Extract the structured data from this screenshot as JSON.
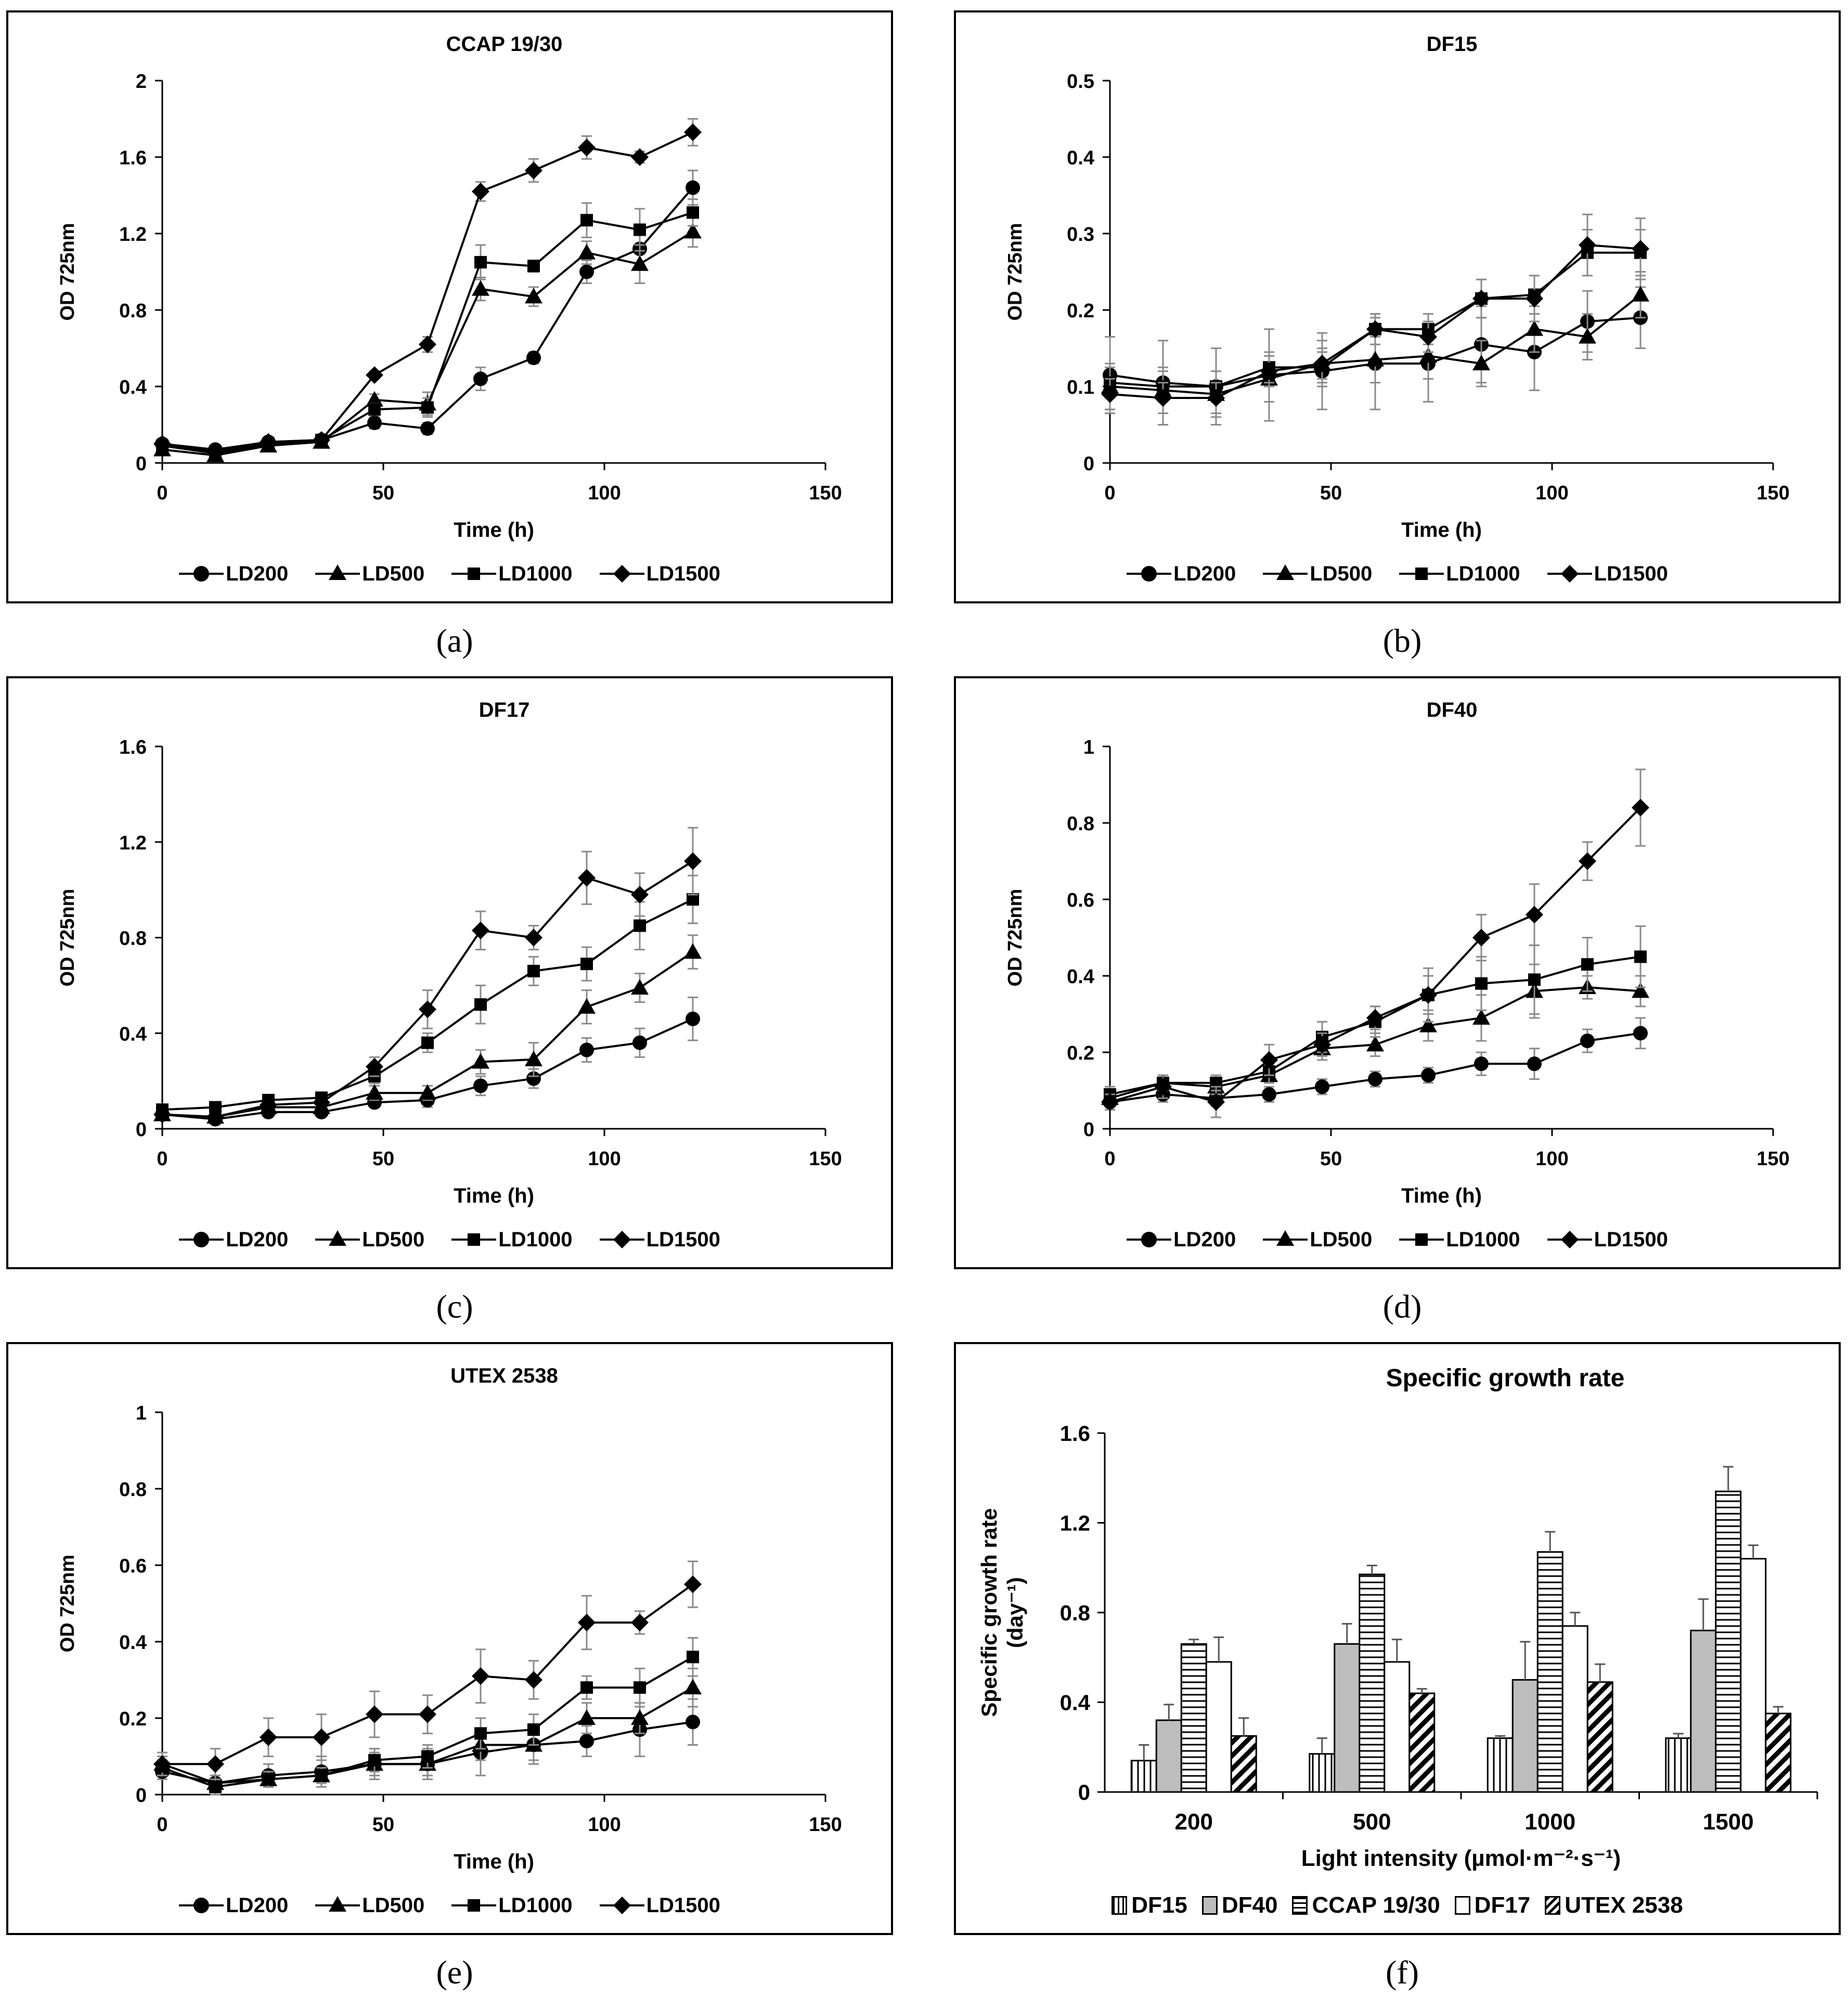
{
  "chart_data": [
    {
      "id": "a",
      "type": "line",
      "panel_label": "(a)",
      "title": "CCAP 19/30",
      "xlabel": "Time (h)",
      "ylabel": "OD 725nm",
      "xlim": [
        0,
        150
      ],
      "ylim": [
        0,
        2
      ],
      "xticks": [
        0,
        50,
        100,
        150
      ],
      "yticks": [
        0,
        0.4,
        0.8,
        1.2,
        1.6,
        2
      ],
      "ytick_labels": [
        "0",
        "0.4",
        "0.8",
        "1.2",
        "1.6",
        "2"
      ],
      "x": [
        0,
        12,
        24,
        36,
        48,
        60,
        72,
        84,
        96,
        108,
        120
      ],
      "series": [
        {
          "name": "LD200",
          "marker": "circle",
          "values": [
            0.1,
            0.07,
            0.11,
            0.12,
            0.21,
            0.18,
            0.44,
            0.55,
            1.0,
            1.12,
            1.44
          ],
          "errors": [
            0.02,
            0.01,
            0.01,
            0.01,
            0.03,
            0.03,
            0.06,
            0.03,
            0.06,
            0.08,
            0.09
          ]
        },
        {
          "name": "LD500",
          "marker": "triangle",
          "values": [
            0.07,
            0.04,
            0.09,
            0.11,
            0.33,
            0.31,
            0.91,
            0.87,
            1.1,
            1.04,
            1.21
          ],
          "errors": [
            0.01,
            0.01,
            0.01,
            0.01,
            0.03,
            0.06,
            0.06,
            0.05,
            0.06,
            0.1,
            0.08
          ]
        },
        {
          "name": "LD1000",
          "marker": "square",
          "values": [
            0.09,
            0.05,
            0.1,
            0.12,
            0.28,
            0.29,
            1.05,
            1.03,
            1.27,
            1.22,
            1.31
          ],
          "errors": [
            0.01,
            0.01,
            0.01,
            0.01,
            0.03,
            0.05,
            0.09,
            0.03,
            0.09,
            0.11,
            0.07
          ]
        },
        {
          "name": "LD1500",
          "marker": "diamond",
          "values": [
            0.1,
            0.06,
            0.11,
            0.12,
            0.46,
            0.62,
            1.42,
            1.53,
            1.65,
            1.6,
            1.73
          ],
          "errors": [
            0.01,
            0.01,
            0.01,
            0.01,
            0.02,
            0.04,
            0.05,
            0.06,
            0.06,
            0.03,
            0.07
          ]
        }
      ]
    },
    {
      "id": "b",
      "type": "line",
      "panel_label": "(b)",
      "title": "DF15",
      "xlabel": "Time (h)",
      "ylabel": "OD 725nm",
      "xlim": [
        0,
        150
      ],
      "ylim": [
        0,
        0.5
      ],
      "xticks": [
        0,
        50,
        100,
        150
      ],
      "yticks": [
        0,
        0.1,
        0.2,
        0.3,
        0.4,
        0.5
      ],
      "ytick_labels": [
        "0",
        "0.1",
        "0.2",
        "0.3",
        "0.4",
        "0.5"
      ],
      "x": [
        0,
        12,
        24,
        36,
        48,
        60,
        72,
        84,
        96,
        108,
        120
      ],
      "series": [
        {
          "name": "LD200",
          "marker": "circle",
          "values": [
            0.115,
            0.105,
            0.1,
            0.115,
            0.12,
            0.13,
            0.13,
            0.155,
            0.145,
            0.185,
            0.19
          ],
          "errors": [
            0.05,
            0.055,
            0.05,
            0.06,
            0.05,
            0.06,
            0.05,
            0.05,
            0.05,
            0.04,
            0.04
          ]
        },
        {
          "name": "LD500",
          "marker": "triangle",
          "values": [
            0.1,
            0.095,
            0.09,
            0.11,
            0.13,
            0.135,
            0.14,
            0.13,
            0.175,
            0.165,
            0.22
          ],
          "errors": [
            0.03,
            0.03,
            0.03,
            0.03,
            0.03,
            0.03,
            0.03,
            0.03,
            0.03,
            0.03,
            0.03
          ]
        },
        {
          "name": "LD1000",
          "marker": "square",
          "values": [
            0.105,
            0.1,
            0.1,
            0.125,
            0.125,
            0.175,
            0.175,
            0.215,
            0.22,
            0.275,
            0.275
          ],
          "errors": [
            0.02,
            0.02,
            0.02,
            0.02,
            0.02,
            0.02,
            0.02,
            0.025,
            0.025,
            0.03,
            0.03
          ]
        },
        {
          "name": "LD1500",
          "marker": "diamond",
          "values": [
            0.09,
            0.085,
            0.085,
            0.12,
            0.13,
            0.175,
            0.165,
            0.215,
            0.215,
            0.285,
            0.28
          ],
          "errors": [
            0.02,
            0.02,
            0.02,
            0.02,
            0.02,
            0.02,
            0.02,
            0.025,
            0.03,
            0.04,
            0.04
          ]
        }
      ]
    },
    {
      "id": "c",
      "type": "line",
      "panel_label": "(c)",
      "title": "DF17",
      "xlabel": "Time (h)",
      "ylabel": "OD 725nm",
      "xlim": [
        0,
        150
      ],
      "ylim": [
        0,
        1.6
      ],
      "xticks": [
        0,
        50,
        100,
        150
      ],
      "yticks": [
        0,
        0.4,
        0.8,
        1.2,
        1.6
      ],
      "ytick_labels": [
        "0",
        "0.4",
        "0.8",
        "1.2",
        "1.6"
      ],
      "x": [
        0,
        12,
        24,
        36,
        48,
        60,
        72,
        84,
        96,
        108,
        120
      ],
      "series": [
        {
          "name": "LD200",
          "marker": "circle",
          "values": [
            0.06,
            0.04,
            0.07,
            0.07,
            0.11,
            0.12,
            0.18,
            0.21,
            0.33,
            0.36,
            0.46
          ],
          "errors": [
            0.01,
            0.01,
            0.01,
            0.01,
            0.02,
            0.03,
            0.04,
            0.04,
            0.05,
            0.06,
            0.09
          ]
        },
        {
          "name": "LD500",
          "marker": "triangle",
          "values": [
            0.06,
            0.05,
            0.09,
            0.09,
            0.15,
            0.15,
            0.28,
            0.29,
            0.51,
            0.59,
            0.74
          ],
          "errors": [
            0.01,
            0.01,
            0.01,
            0.01,
            0.03,
            0.03,
            0.05,
            0.07,
            0.07,
            0.06,
            0.07
          ]
        },
        {
          "name": "LD1000",
          "marker": "square",
          "values": [
            0.08,
            0.09,
            0.12,
            0.13,
            0.22,
            0.36,
            0.52,
            0.66,
            0.69,
            0.85,
            0.96
          ],
          "errors": [
            0.01,
            0.01,
            0.01,
            0.01,
            0.03,
            0.04,
            0.08,
            0.06,
            0.07,
            0.1,
            0.1
          ]
        },
        {
          "name": "LD1500",
          "marker": "diamond",
          "values": [
            0.06,
            0.05,
            0.1,
            0.11,
            0.26,
            0.5,
            0.83,
            0.8,
            1.05,
            0.98,
            1.12
          ],
          "errors": [
            0.01,
            0.01,
            0.01,
            0.01,
            0.04,
            0.08,
            0.08,
            0.05,
            0.11,
            0.09,
            0.14
          ]
        }
      ]
    },
    {
      "id": "d",
      "type": "line",
      "panel_label": "(d)",
      "title": "DF40",
      "xlabel": "Time (h)",
      "ylabel": "OD 725nm",
      "xlim": [
        0,
        150
      ],
      "ylim": [
        0,
        1
      ],
      "xticks": [
        0,
        50,
        100,
        150
      ],
      "yticks": [
        0,
        0.2,
        0.4,
        0.6,
        0.8,
        1
      ],
      "ytick_labels": [
        "0",
        "0.2",
        "0.4",
        "0.6",
        "0.8",
        "1"
      ],
      "x": [
        0,
        12,
        24,
        36,
        48,
        60,
        72,
        84,
        96,
        108,
        120
      ],
      "series": [
        {
          "name": "LD200",
          "marker": "circle",
          "values": [
            0.07,
            0.09,
            0.08,
            0.09,
            0.11,
            0.13,
            0.14,
            0.17,
            0.17,
            0.23,
            0.25
          ],
          "errors": [
            0.02,
            0.02,
            0.02,
            0.02,
            0.02,
            0.02,
            0.02,
            0.03,
            0.04,
            0.03,
            0.04
          ]
        },
        {
          "name": "LD500",
          "marker": "triangle",
          "values": [
            0.08,
            0.12,
            0.11,
            0.14,
            0.21,
            0.22,
            0.27,
            0.29,
            0.36,
            0.37,
            0.36
          ],
          "errors": [
            0.02,
            0.02,
            0.02,
            0.02,
            0.03,
            0.03,
            0.04,
            0.06,
            0.07,
            0.03,
            0.04
          ]
        },
        {
          "name": "LD1000",
          "marker": "square",
          "values": [
            0.09,
            0.12,
            0.12,
            0.15,
            0.24,
            0.28,
            0.35,
            0.38,
            0.39,
            0.43,
            0.45
          ],
          "errors": [
            0.02,
            0.02,
            0.02,
            0.03,
            0.04,
            0.04,
            0.05,
            0.07,
            0.09,
            0.07,
            0.08
          ]
        },
        {
          "name": "LD1500",
          "marker": "diamond",
          "values": [
            0.07,
            0.11,
            0.07,
            0.18,
            0.22,
            0.29,
            0.35,
            0.5,
            0.56,
            0.7,
            0.84
          ],
          "errors": [
            0.02,
            0.03,
            0.04,
            0.04,
            0.03,
            0.03,
            0.07,
            0.06,
            0.08,
            0.05,
            0.1
          ]
        }
      ]
    },
    {
      "id": "e",
      "type": "line",
      "panel_label": "(e)",
      "title": "UTEX 2538",
      "xlabel": "Time (h)",
      "ylabel": "OD 725nm",
      "xlim": [
        0,
        150
      ],
      "ylim": [
        0,
        1
      ],
      "xticks": [
        0,
        50,
        100,
        150
      ],
      "yticks": [
        0,
        0.2,
        0.4,
        0.6,
        0.8,
        1
      ],
      "ytick_labels": [
        "0",
        "0.2",
        "0.4",
        "0.6",
        "0.8",
        "1"
      ],
      "x": [
        0,
        12,
        24,
        36,
        48,
        60,
        72,
        84,
        96,
        108,
        120
      ],
      "series": [
        {
          "name": "LD200",
          "marker": "circle",
          "values": [
            0.06,
            0.03,
            0.05,
            0.06,
            0.08,
            0.08,
            0.11,
            0.13,
            0.14,
            0.17,
            0.19
          ],
          "errors": [
            0.02,
            0.02,
            0.03,
            0.04,
            0.04,
            0.04,
            0.06,
            0.05,
            0.04,
            0.07,
            0.06
          ]
        },
        {
          "name": "LD500",
          "marker": "triangle",
          "values": [
            0.08,
            0.03,
            0.04,
            0.05,
            0.08,
            0.08,
            0.13,
            0.13,
            0.2,
            0.2,
            0.28
          ],
          "errors": [
            0.02,
            0.02,
            0.02,
            0.02,
            0.03,
            0.03,
            0.04,
            0.04,
            0.04,
            0.04,
            0.05
          ]
        },
        {
          "name": "LD1000",
          "marker": "square",
          "values": [
            0.07,
            0.02,
            0.04,
            0.05,
            0.09,
            0.1,
            0.16,
            0.17,
            0.28,
            0.28,
            0.36
          ],
          "errors": [
            0.02,
            0.02,
            0.02,
            0.02,
            0.03,
            0.03,
            0.04,
            0.04,
            0.03,
            0.05,
            0.05
          ]
        },
        {
          "name": "LD1500",
          "marker": "diamond",
          "values": [
            0.08,
            0.08,
            0.15,
            0.15,
            0.21,
            0.21,
            0.31,
            0.3,
            0.45,
            0.45,
            0.55
          ],
          "errors": [
            0.03,
            0.04,
            0.05,
            0.06,
            0.06,
            0.05,
            0.07,
            0.05,
            0.07,
            0.03,
            0.06
          ]
        }
      ]
    },
    {
      "id": "f",
      "type": "bar",
      "panel_label": "(f)",
      "title": "Specific growth rate",
      "xlabel": "Light intensity (µmol·m⁻²·s⁻¹)",
      "ylabel_line1": "Specific growth rate",
      "ylabel_line2": "(day⁻¹)",
      "ylim": [
        0,
        1.6
      ],
      "yticks": [
        0,
        0.4,
        0.8,
        1.2,
        1.6
      ],
      "ytick_labels": [
        "0",
        "0.4",
        "0.8",
        "1.2",
        "1.6"
      ],
      "categories": [
        "200",
        "500",
        "1000",
        "1500"
      ],
      "series": [
        {
          "name": "DF15",
          "pattern": "vertical",
          "values": [
            0.14,
            0.17,
            0.24,
            0.24
          ],
          "errors": [
            0.07,
            0.07,
            0.01,
            0.02
          ]
        },
        {
          "name": "DF40",
          "pattern": "gray",
          "values": [
            0.32,
            0.66,
            0.5,
            0.72
          ],
          "errors": [
            0.07,
            0.09,
            0.17,
            0.14
          ]
        },
        {
          "name": "CCAP 19/30",
          "pattern": "horizontal",
          "values": [
            0.66,
            0.97,
            1.07,
            1.34
          ],
          "errors": [
            0.02,
            0.04,
            0.09,
            0.11
          ]
        },
        {
          "name": "DF17",
          "pattern": "white",
          "values": [
            0.58,
            0.58,
            0.74,
            1.04
          ],
          "errors": [
            0.11,
            0.1,
            0.06,
            0.06
          ]
        },
        {
          "name": "UTEX 2538",
          "pattern": "diagonal",
          "values": [
            0.25,
            0.44,
            0.49,
            0.35
          ],
          "errors": [
            0.08,
            0.02,
            0.08,
            0.03
          ]
        }
      ]
    }
  ]
}
